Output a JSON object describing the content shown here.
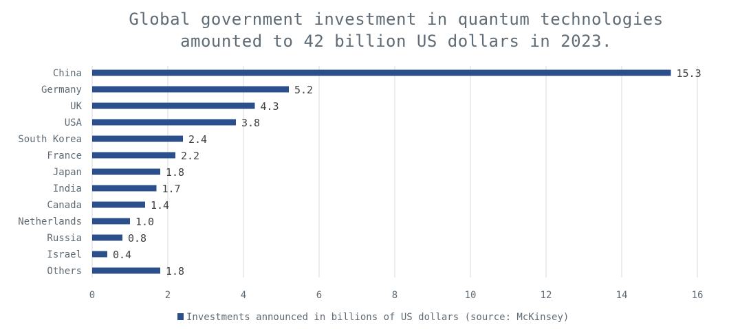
{
  "chart_data": {
    "type": "bar",
    "orientation": "horizontal",
    "title_lines": [
      "Global government investment in quantum technologies",
      "amounted to 42 billion US dollars in 2023."
    ],
    "categories": [
      "China",
      "Germany",
      "UK",
      "USA",
      "South Korea",
      "France",
      "Japan",
      "India",
      "Canada",
      "Netherlands",
      "Russia",
      "Israel",
      "Others"
    ],
    "series": [
      {
        "name": "Investments announced in billions of US dollars (source: McKinsey)",
        "values": [
          15.3,
          5.2,
          4.3,
          3.8,
          2.4,
          2.2,
          1.8,
          1.7,
          1.4,
          1.0,
          0.8,
          0.4,
          1.8
        ],
        "value_labels": [
          "15.3",
          "5.2",
          "4.3",
          "3.8",
          "2.4",
          "2.2",
          "1.8",
          "1.7",
          "1.4",
          "1.0",
          "0.8",
          "0.4",
          "1.8"
        ]
      }
    ],
    "x_ticks": [
      "0",
      "2",
      "4",
      "6",
      "8",
      "10",
      "12",
      "14",
      "16"
    ],
    "xlim": [
      0,
      16
    ],
    "grid": true,
    "legend_position": "bottom",
    "colors": {
      "bar": "#2b4f8a",
      "grid": "#d9d9d9",
      "text": "#5f6b75"
    }
  }
}
